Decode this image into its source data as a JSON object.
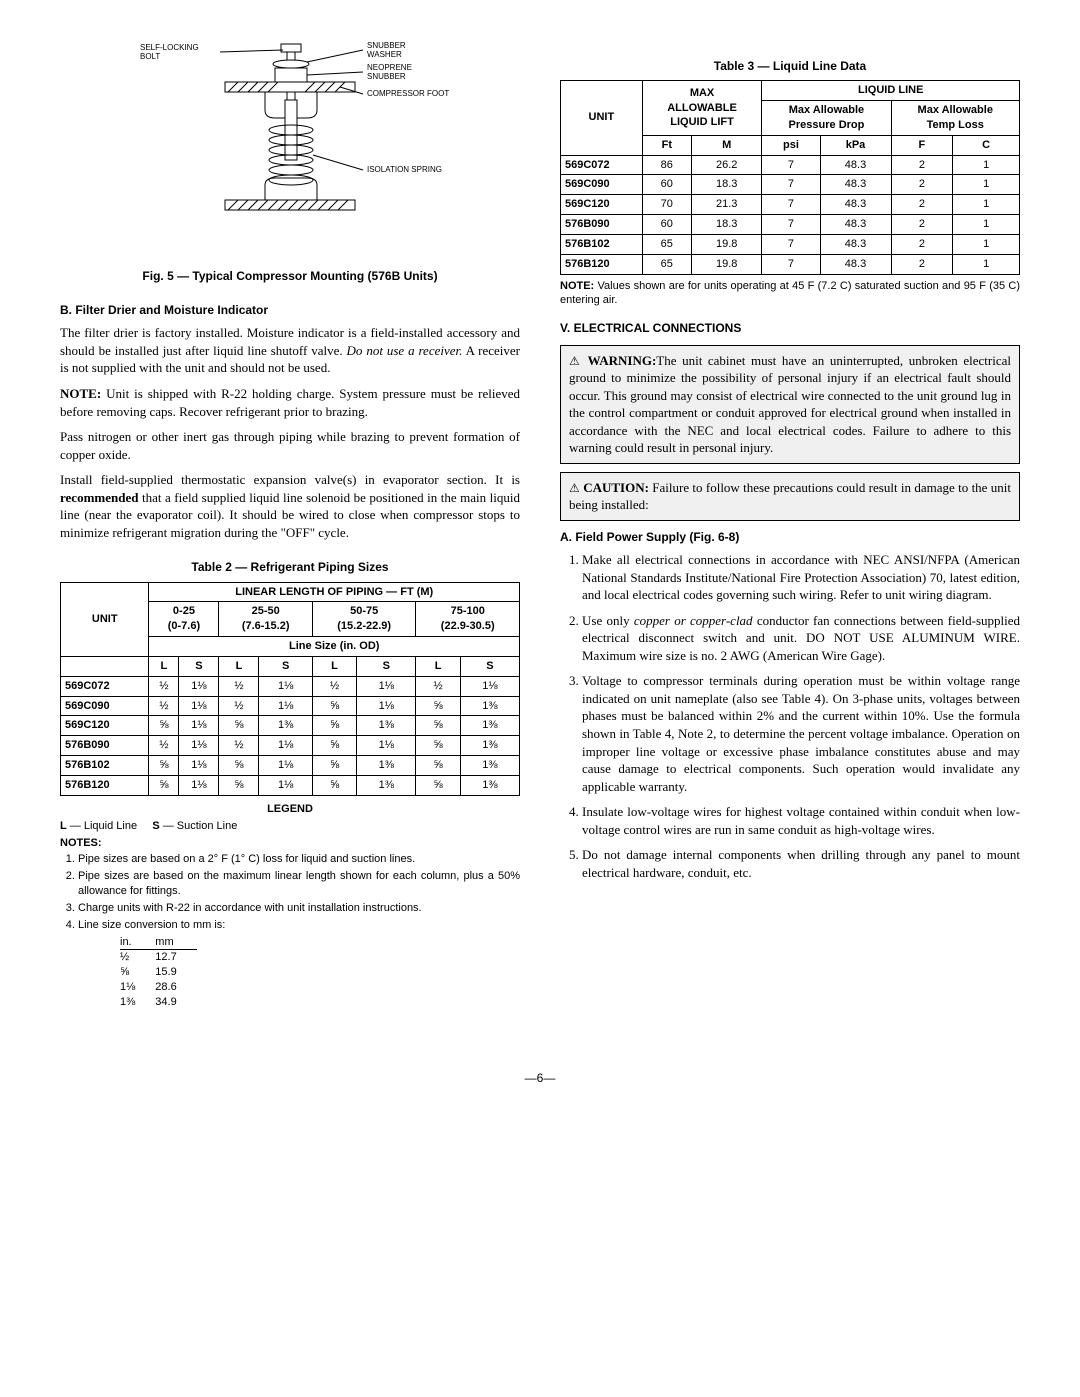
{
  "fig5": {
    "caption": "Fig. 5 — Typical Compressor Mounting (576B Units)",
    "labels": {
      "self_locking_bolt": "SELF-LOCKING\nBOLT",
      "snubber_washer": "SNUBBER\nWASHER",
      "neoprene_snubber": "NEOPRENE\nSNUBBER",
      "compressor_foot": "COMPRESSOR FOOT",
      "isolation_spring": "ISOLATION SPRING"
    }
  },
  "sectB": {
    "title": "B. Filter Drier and Moisture Indicator",
    "para1": "The filter drier is factory installed. Moisture indicator is a field-installed accessory and should be installed just after liquid line shutoff valve. Do not use a receiver. A receiver is not supplied with the unit and should not be used.",
    "para2_label": "NOTE:",
    "para2": " Unit is shipped with R-22 holding charge. System pressure must be relieved before removing caps. Recover refrigerant prior to brazing.",
    "para3": "Pass nitrogen or other inert gas through piping while brazing to prevent formation of copper oxide.",
    "para4a": "Install field-supplied thermostatic expansion valve(s) in evaporator section. It is ",
    "para4b": "recommended",
    "para4c": " that a field supplied liquid line solenoid be positioned in the main liquid line (near the evaporator coil). It should be wired to close when compressor stops to minimize refrigerant migration during the \"OFF\" cycle."
  },
  "table2": {
    "caption": "Table 2 — Refrigerant Piping Sizes",
    "header_top": "LINEAR LENGTH OF PIPING — FT (M)",
    "unit_header": "UNIT",
    "ranges": [
      "0-25\n(0-7.6)",
      "25-50\n(7.6-15.2)",
      "50-75\n(15.2-22.9)",
      "75-100\n(22.9-30.5)"
    ],
    "line_size_header": "Line Size (in. OD)",
    "ls_headers": [
      "L",
      "S",
      "L",
      "S",
      "L",
      "S",
      "L",
      "S"
    ],
    "units": [
      "569C072",
      "569C090",
      "569C120",
      "576B090",
      "576B102",
      "576B120"
    ],
    "rows": [
      [
        "½",
        "1⅛",
        "½",
        "1⅛",
        "½",
        "1⅛",
        "½",
        "1⅛"
      ],
      [
        "½",
        "1⅛",
        "½",
        "1⅛",
        "⅝",
        "1⅛",
        "⅝",
        "1⅜"
      ],
      [
        "⅝",
        "1⅛",
        "⅝",
        "1⅜",
        "⅝",
        "1⅜",
        "⅝",
        "1⅜"
      ],
      [
        "½",
        "1⅛",
        "½",
        "1⅛",
        "⅝",
        "1⅛",
        "⅝",
        "1⅜"
      ],
      [
        "⅝",
        "1⅛",
        "⅝",
        "1⅛",
        "⅝",
        "1⅜",
        "⅝",
        "1⅜"
      ],
      [
        "⅝",
        "1⅛",
        "⅝",
        "1⅛",
        "⅝",
        "1⅜",
        "⅝",
        "1⅜"
      ]
    ]
  },
  "legend": {
    "title": "LEGEND",
    "l_label": "L",
    "l_text": " — Liquid Line",
    "s_label": "S",
    "s_text": " — Suction Line",
    "notes_title": "NOTES:",
    "notes": [
      "Pipe sizes are based on a 2° F (1° C) loss for liquid and suction lines.",
      "Pipe sizes are based on the maximum linear length shown for each column, plus a 50% allowance for fittings.",
      "Charge units with R-22 in accordance with unit installation instructions.",
      "Line size conversion to mm is:"
    ],
    "conv_headers": [
      "in.",
      "mm"
    ],
    "conv_rows": [
      [
        "½",
        "12.7"
      ],
      [
        "⅝",
        "15.9"
      ],
      [
        "1⅛",
        "28.6"
      ],
      [
        "1⅜",
        "34.9"
      ]
    ]
  },
  "table3": {
    "caption": "Table 3 — Liquid Line Data",
    "unit_header": "UNIT",
    "max_allow": "MAX\nALLOWABLE\nLIQUID LIFT",
    "liquid_line": "LIQUID LINE",
    "max_pdrop": "Max Allowable\nPressure Drop",
    "max_tloss": "Max Allowable\nTemp Loss",
    "sub_headers": [
      "Ft",
      "M",
      "psi",
      "kPa",
      "F",
      "C"
    ],
    "units": [
      "569C072",
      "569C090",
      "569C120",
      "576B090",
      "576B102",
      "576B120"
    ],
    "rows": [
      [
        "86",
        "26.2",
        "7",
        "48.3",
        "2",
        "1"
      ],
      [
        "60",
        "18.3",
        "7",
        "48.3",
        "2",
        "1"
      ],
      [
        "70",
        "21.3",
        "7",
        "48.3",
        "2",
        "1"
      ],
      [
        "60",
        "18.3",
        "7",
        "48.3",
        "2",
        "1"
      ],
      [
        "65",
        "19.8",
        "7",
        "48.3",
        "2",
        "1"
      ],
      [
        "65",
        "19.8",
        "7",
        "48.3",
        "2",
        "1"
      ]
    ],
    "note_label": "NOTE:",
    "note_text": " Values shown are for units operating at 45 F (7.2 C) saturated suction and 95 F (35 C) entering air."
  },
  "sectV": {
    "title": "V. ELECTRICAL CONNECTIONS",
    "warning_label": "WARNING:",
    "warning_text": "The unit cabinet must have an uninterrupted, unbroken electrical ground to minimize the possibility of personal injury if an electrical fault should occur. This ground may consist of electrical wire connected to the unit ground lug in the control compartment or conduit approved for electrical ground when installed in accordance with the NEC and local electrical codes. Failure to adhere to this warning could result in personal injury.",
    "caution_label": "CAUTION:",
    "caution_text": " Failure to follow these precautions could result in damage to the unit being installed:"
  },
  "sectA": {
    "title": "A. Field Power Supply (Fig. 6-8)",
    "items": [
      "Make all electrical connections in accordance with NEC ANSI/NFPA (American National Standards Institute/National Fire Protection Association) 70, latest edition, and local electrical codes governing such wiring. Refer to unit wiring diagram.",
      "Use only <i>copper or copper-clad</i> conductor fan connections between field-supplied electrical disconnect switch and unit. DO NOT USE ALUMINUM WIRE. Maximum wire size is no. 2 AWG (American Wire Gage).",
      "Voltage to compressor terminals during operation must be within voltage range indicated on unit nameplate (also see Table 4). On 3-phase units, voltages between phases must be balanced within 2% and the current within 10%. Use the formula shown in Table 4, Note 2, to determine the percent voltage imbalance. Operation on improper line voltage or excessive phase imbalance constitutes abuse and may cause damage to electrical components. Such operation would invalidate any applicable warranty.",
      "Insulate low-voltage wires for highest voltage contained within conduit when low-voltage control wires are run in same conduit as high-voltage wires.",
      "Do not damage internal components when drilling through any panel to mount electrical hardware, conduit, etc."
    ]
  },
  "page_number": "—6—"
}
